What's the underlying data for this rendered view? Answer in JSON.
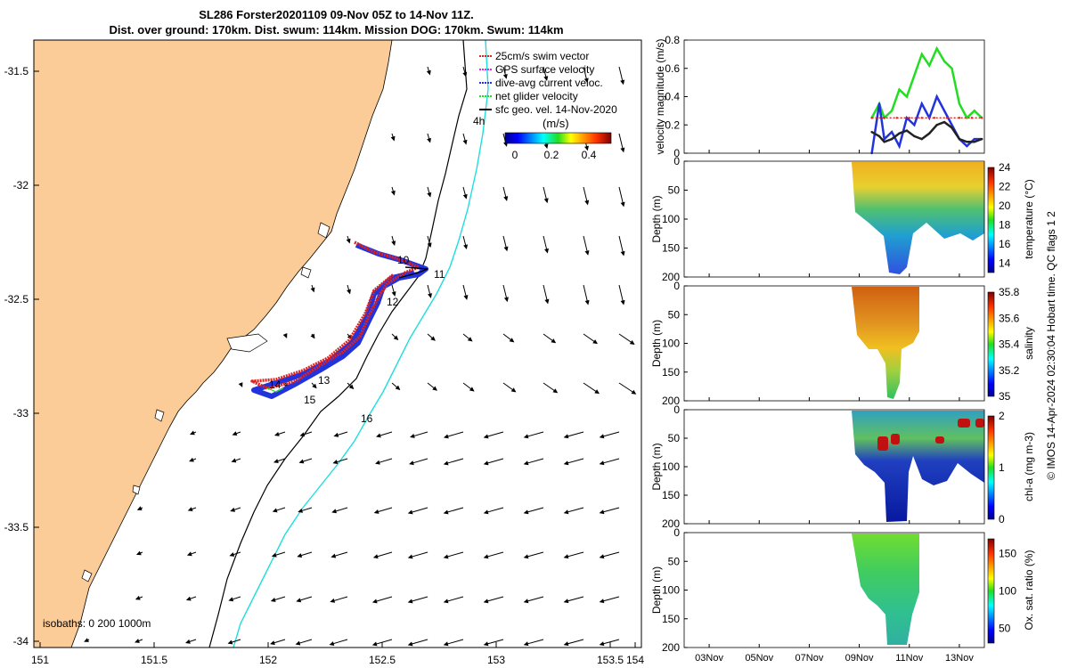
{
  "title": {
    "line1": "SL286 Forster20201109 09-Nov 05Z to 14-Nov 11Z.",
    "line2": "Dist. over ground: 170km. Dist. swum: 114km. Mission DOG: 170km. Swum: 114km"
  },
  "map": {
    "lon_ticks": [
      "151",
      "151.5",
      "152",
      "152.5",
      "153",
      "153.5",
      "154"
    ],
    "lat_ticks": [
      "-31.5",
      "-32",
      "-32.5",
      "-33",
      "-33.5",
      "-34"
    ],
    "legend": [
      {
        "label": "25cm/s swim vector",
        "color": "#dd2222"
      },
      {
        "label": "GPS surface velocity",
        "color": "#ee22ee"
      },
      {
        "label": "dive-avg current veloc.",
        "color": "#2233dd"
      },
      {
        "label": "net glider velocity",
        "color": "#22dd22"
      },
      {
        "label": "sfc geo. vel. 14-Nov-2020",
        "color": "#000000"
      }
    ],
    "colorbar_label": "(m/s)",
    "colorbar_ticks": [
      "0",
      "0.2",
      "0.4"
    ],
    "day_labels": [
      "10",
      "11",
      "12",
      "13",
      "14",
      "15",
      "16"
    ],
    "hour_label": "4h",
    "isobaths_label": "isobaths: 0   200  1000m",
    "colors": {
      "land": "#fbcb98",
      "isobath_200": "#000000",
      "isobath_1000": "#22dddd"
    }
  },
  "time_axis_ticks": [
    "03Nov",
    "05Nov",
    "07Nov",
    "09Nov",
    "11Nov",
    "13Nov"
  ],
  "side_label": "© IMOS 14-Apr-2024 02:30:04 Hobart time. QC flags 1 2",
  "chart_data": [
    {
      "type": "line",
      "ylabel": "velocity magnitude (m/s)",
      "ylim": [
        0,
        0.8
      ],
      "yticks": [
        "0",
        "0.2",
        "0.4",
        "0.6",
        "0.8"
      ],
      "xlim": [
        0,
        12
      ],
      "x_unit": "days since 02-Nov",
      "series": [
        {
          "name": "net glider velocity",
          "color": "#22dd22",
          "x": [
            7.5,
            7.8,
            8.0,
            8.3,
            8.6,
            8.9,
            9.2,
            9.5,
            9.8,
            10.1,
            10.4,
            10.7,
            11.0,
            11.3,
            11.6,
            11.9
          ],
          "y": [
            0.25,
            0.35,
            0.25,
            0.3,
            0.45,
            0.4,
            0.55,
            0.7,
            0.62,
            0.74,
            0.65,
            0.6,
            0.35,
            0.25,
            0.3,
            0.25
          ]
        },
        {
          "name": "dive-avg current veloc.",
          "color": "#2233dd",
          "x": [
            7.5,
            7.8,
            8.0,
            8.3,
            8.6,
            8.9,
            9.2,
            9.5,
            9.8,
            10.1,
            10.4,
            10.7,
            11.0,
            11.3,
            11.6,
            11.9
          ],
          "y": [
            0.0,
            0.35,
            0.1,
            0.15,
            0.05,
            0.25,
            0.2,
            0.35,
            0.25,
            0.4,
            0.3,
            0.2,
            0.1,
            0.05,
            0.1,
            0.1
          ]
        },
        {
          "name": "sfc geo. vel.",
          "color": "#222222",
          "x": [
            7.5,
            7.8,
            8.0,
            8.3,
            8.6,
            8.9,
            9.2,
            9.5,
            9.8,
            10.1,
            10.4,
            10.7,
            11.0,
            11.3,
            11.6,
            11.9
          ],
          "y": [
            0.15,
            0.12,
            0.08,
            0.1,
            0.14,
            0.16,
            0.12,
            0.1,
            0.14,
            0.2,
            0.22,
            0.18,
            0.1,
            0.08,
            0.08,
            0.1
          ]
        },
        {
          "name": "swim speed",
          "color": "#dd2222",
          "x": [
            7.5,
            8.0,
            8.5,
            9.0,
            9.5,
            10.0,
            10.5,
            11.0,
            11.5,
            11.9
          ],
          "y": [
            0.25,
            0.25,
            0.25,
            0.25,
            0.25,
            0.25,
            0.25,
            0.25,
            0.25,
            0.25
          ]
        }
      ]
    },
    {
      "type": "heatmap",
      "ylabel": "Depth (m)",
      "cbar_label": "temperature (°C)",
      "yticks": [
        "0",
        "50",
        "100",
        "150",
        "200"
      ],
      "cbar_ticks": [
        "14",
        "16",
        "18",
        "20",
        "22",
        "24"
      ],
      "clim": [
        13,
        24
      ]
    },
    {
      "type": "heatmap",
      "ylabel": "Depth (m)",
      "cbar_label": "salinity",
      "yticks": [
        "0",
        "50",
        "100",
        "150",
        "200"
      ],
      "cbar_ticks": [
        "35",
        "35.2",
        "35.4",
        "35.6",
        "35.8"
      ],
      "clim": [
        35,
        35.8
      ]
    },
    {
      "type": "heatmap",
      "ylabel": "Depth (m)",
      "cbar_label": "chl-a (mg m-3)",
      "yticks": [
        "0",
        "50",
        "100",
        "150",
        "200"
      ],
      "cbar_ticks": [
        "0",
        "1",
        "2"
      ],
      "clim": [
        0,
        2
      ]
    },
    {
      "type": "heatmap",
      "ylabel": "Depth (m)",
      "cbar_label": "Ox. sat. ratio (%)",
      "yticks": [
        "0",
        "50",
        "100",
        "150",
        "200"
      ],
      "cbar_ticks": [
        "50",
        "100",
        "150"
      ],
      "clim": [
        30,
        170
      ]
    }
  ]
}
